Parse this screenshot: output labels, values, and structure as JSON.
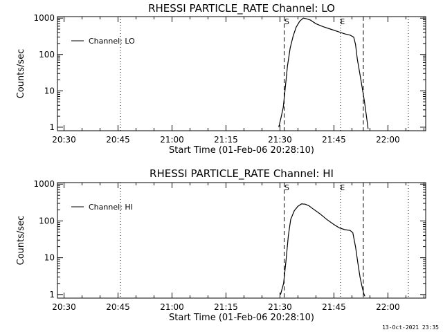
{
  "timestamp": "13-Oct-2021 23:35",
  "chart_data": [
    {
      "type": "line",
      "title": "RHESSI PARTICLE_RATE Channel: LO",
      "ylabel": "Counts/sec",
      "xlabel": "Start Time (01-Feb-06 20:28:10)",
      "y_scale": "log",
      "ylim": [
        0.8,
        1100
      ],
      "xlim": [
        "20:28:10",
        "22:10:30"
      ],
      "x_ticks": [
        "20:30",
        "20:45",
        "21:00",
        "21:15",
        "21:30",
        "21:45",
        "22:00"
      ],
      "y_ticks": [
        "1",
        "10",
        "100",
        "1000"
      ],
      "legend": {
        "position": "top-left",
        "entries": [
          "Channel: LO"
        ]
      },
      "dotted_lines": [
        "20:45:40",
        "21:46:50",
        "22:05:40"
      ],
      "dashed_lines": [
        {
          "time": "21:31:10",
          "label": "S"
        },
        {
          "time": "21:53:10",
          "label": ""
        }
      ],
      "markers": [
        {
          "time": "21:47:00",
          "label": "E"
        }
      ],
      "series": [
        {
          "name": "Channel: LO",
          "x": [
            "21:29:40",
            "21:30:20",
            "21:30:55",
            "21:31:30",
            "21:32:05",
            "21:32:50",
            "21:33:40",
            "21:34:30",
            "21:35:30",
            "21:36:30",
            "21:37:30",
            "21:38:30",
            "21:40:00",
            "21:42:00",
            "21:44:00",
            "21:46:00",
            "21:48:00",
            "21:49:30",
            "21:50:30",
            "21:51:00",
            "21:51:30",
            "21:52:30",
            "21:53:30",
            "21:54:10",
            "21:54:30"
          ],
          "values": [
            1,
            1.9,
            3.5,
            13,
            48,
            150,
            320,
            560,
            820,
            1000,
            950,
            880,
            700,
            580,
            500,
            430,
            370,
            340,
            300,
            190,
            75,
            20,
            5,
            1.6,
            0.9
          ]
        }
      ]
    },
    {
      "type": "line",
      "title": "RHESSI PARTICLE_RATE Channel: HI",
      "ylabel": "Counts/sec",
      "xlabel": "Start Time (01-Feb-06 20:28:10)",
      "y_scale": "log",
      "ylim": [
        0.8,
        1100
      ],
      "xlim": [
        "20:28:10",
        "22:10:30"
      ],
      "x_ticks": [
        "20:30",
        "20:45",
        "21:00",
        "21:15",
        "21:30",
        "21:45",
        "22:00"
      ],
      "y_ticks": [
        "1",
        "10",
        "100",
        "1000"
      ],
      "legend": {
        "position": "top-left",
        "entries": [
          "Channel: HI"
        ]
      },
      "dotted_lines": [
        "20:45:40",
        "21:46:50",
        "22:05:40"
      ],
      "dashed_lines": [
        {
          "time": "21:31:10",
          "label": "S"
        },
        {
          "time": "21:53:10",
          "label": ""
        }
      ],
      "markers": [
        {
          "time": "21:47:00",
          "label": "E"
        }
      ],
      "series": [
        {
          "name": "Channel: HI",
          "x": [
            "21:30:10",
            "21:31:00",
            "21:31:40",
            "21:32:20",
            "21:33:00",
            "21:34:00",
            "21:35:00",
            "21:36:00",
            "21:37:00",
            "21:38:00",
            "21:39:00",
            "21:41:00",
            "21:43:00",
            "21:45:00",
            "21:46:30",
            "21:48:00",
            "21:49:30",
            "21:50:15",
            "21:51:00",
            "21:51:40",
            "21:52:15",
            "21:52:50",
            "21:53:15",
            "21:53:35"
          ],
          "values": [
            1,
            2,
            8,
            40,
            110,
            190,
            250,
            290,
            285,
            260,
            220,
            160,
            110,
            80,
            65,
            58,
            55,
            48,
            20,
            7,
            3,
            1.6,
            1.1,
            0.9
          ]
        }
      ]
    }
  ]
}
